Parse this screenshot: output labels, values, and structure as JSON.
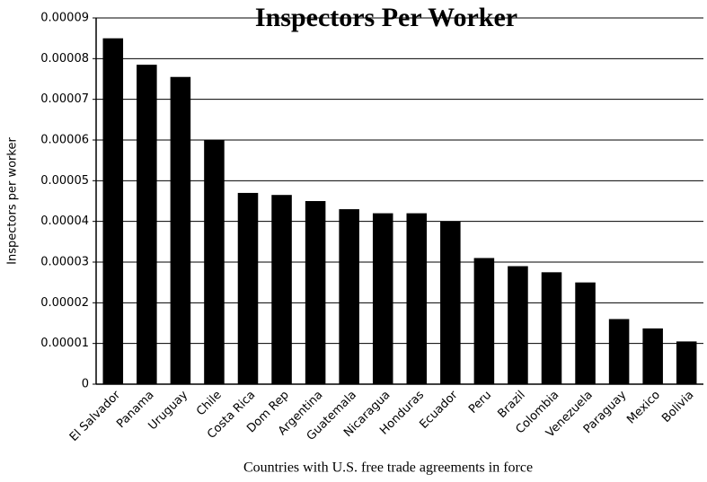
{
  "chart_data": {
    "type": "bar",
    "title": "Inspectors Per Worker",
    "x_label": "Countries with U.S. free trade agreements in force",
    "y_label": "Inspectors per worker",
    "categories": [
      "El Salvador",
      "Panama",
      "Uruguay",
      "Chile",
      "Costa Rica",
      "Dom Rep",
      "Argentina",
      "Guatemala",
      "Nicaragua",
      "Honduras",
      "Ecuador",
      "Peru",
      "Brazil",
      "Colombia",
      "Venezuela",
      "Paraguay",
      "Mexico",
      "Bolivia"
    ],
    "values": [
      8.5e-05,
      7.85e-05,
      7.55e-05,
      6e-05,
      4.7e-05,
      4.65e-05,
      4.5e-05,
      4.3e-05,
      4.2e-05,
      4.2e-05,
      4e-05,
      3.1e-05,
      2.9e-05,
      2.75e-05,
      2.5e-05,
      1.6e-05,
      1.37e-05,
      1.05e-05
    ],
    "color": "#000000",
    "ylim": [
      0,
      9e-05
    ],
    "yticks": [
      0,
      1e-05,
      2e-05,
      3e-05,
      4e-05,
      5e-05,
      6e-05,
      7e-05,
      8e-05,
      9e-05
    ],
    "grid": true
  }
}
